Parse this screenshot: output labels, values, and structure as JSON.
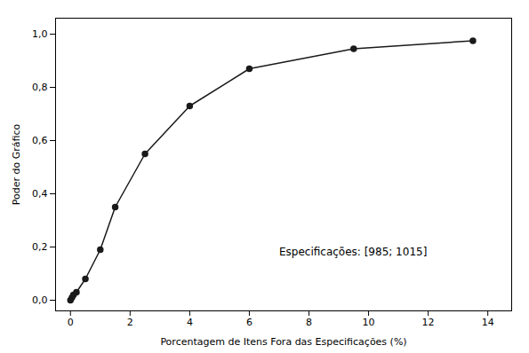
{
  "chart_data": {
    "type": "line",
    "x": [
      0.0,
      0.05,
      0.1,
      0.2,
      0.5,
      1.0,
      1.5,
      2.5,
      4.0,
      6.0,
      9.5,
      13.5
    ],
    "values": [
      0.0,
      0.01,
      0.02,
      0.03,
      0.08,
      0.19,
      0.35,
      0.55,
      0.73,
      0.87,
      0.945,
      0.975
    ],
    "color": "#1a1a1a",
    "marker": "circle",
    "xlabel": "Porcentagem de Itens Fora das Especificações (%)",
    "ylabel": "Poder do Gráfico",
    "annotations": [
      {
        "text": "Especificações: [985; 1015]",
        "x": 7.0,
        "y": 0.18
      }
    ],
    "xlim": [
      -0.5,
      14.8
    ],
    "ylim": [
      -0.04,
      1.06
    ],
    "xticks": [
      0,
      2,
      4,
      6,
      8,
      10,
      12,
      14
    ],
    "yticks": [
      {
        "value": 0.0,
        "label": "0,0"
      },
      {
        "value": 0.2,
        "label": "0,2"
      },
      {
        "value": 0.4,
        "label": "0,4"
      },
      {
        "value": 0.6,
        "label": "0,6"
      },
      {
        "value": 0.8,
        "label": "0,8"
      },
      {
        "value": 1.0,
        "label": "1,0"
      }
    ],
    "grid": false
  }
}
